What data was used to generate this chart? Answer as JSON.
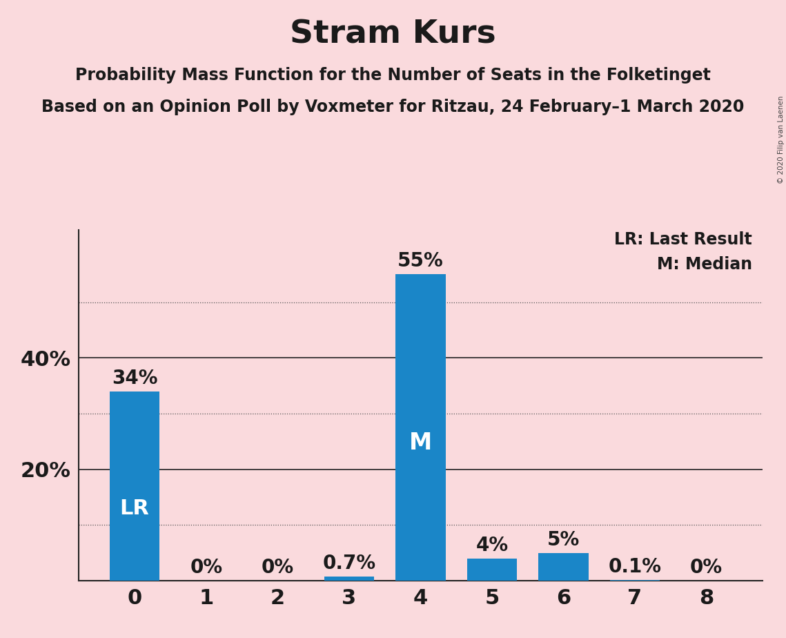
{
  "title": "Stram Kurs",
  "subtitle1": "Probability Mass Function for the Number of Seats in the Folketinget",
  "subtitle2": "Based on an Opinion Poll by Voxmeter for Ritzau, 24 February–1 March 2020",
  "categories": [
    0,
    1,
    2,
    3,
    4,
    5,
    6,
    7,
    8
  ],
  "values": [
    34,
    0,
    0,
    0.7,
    55,
    4,
    5,
    0.1,
    0
  ],
  "labels": [
    "34%",
    "0%",
    "0%",
    "0.7%",
    "55%",
    "4%",
    "5%",
    "0.1%",
    "0%"
  ],
  "bar_color": "#1a86c8",
  "background_color": "#fadadd",
  "label_color_dark": "#1a1a1a",
  "label_color_white": "#ffffff",
  "title_fontsize": 34,
  "subtitle_fontsize": 17,
  "yticks": [
    20,
    40
  ],
  "ylim": [
    0,
    63
  ],
  "dotted_gridlines": [
    10,
    30,
    50
  ],
  "solid_gridlines": [
    20,
    40
  ],
  "lr_bar_index": 0,
  "median_bar_index": 4,
  "legend_text1": "LR: Last Result",
  "legend_text2": "M: Median",
  "watermark": "© 2020 Filip van Laenen",
  "lr_label": "LR",
  "median_label": "M",
  "bar_label_fontsize": 20,
  "inside_label_fontsize": 22,
  "tick_fontsize": 22,
  "legend_fontsize": 17
}
